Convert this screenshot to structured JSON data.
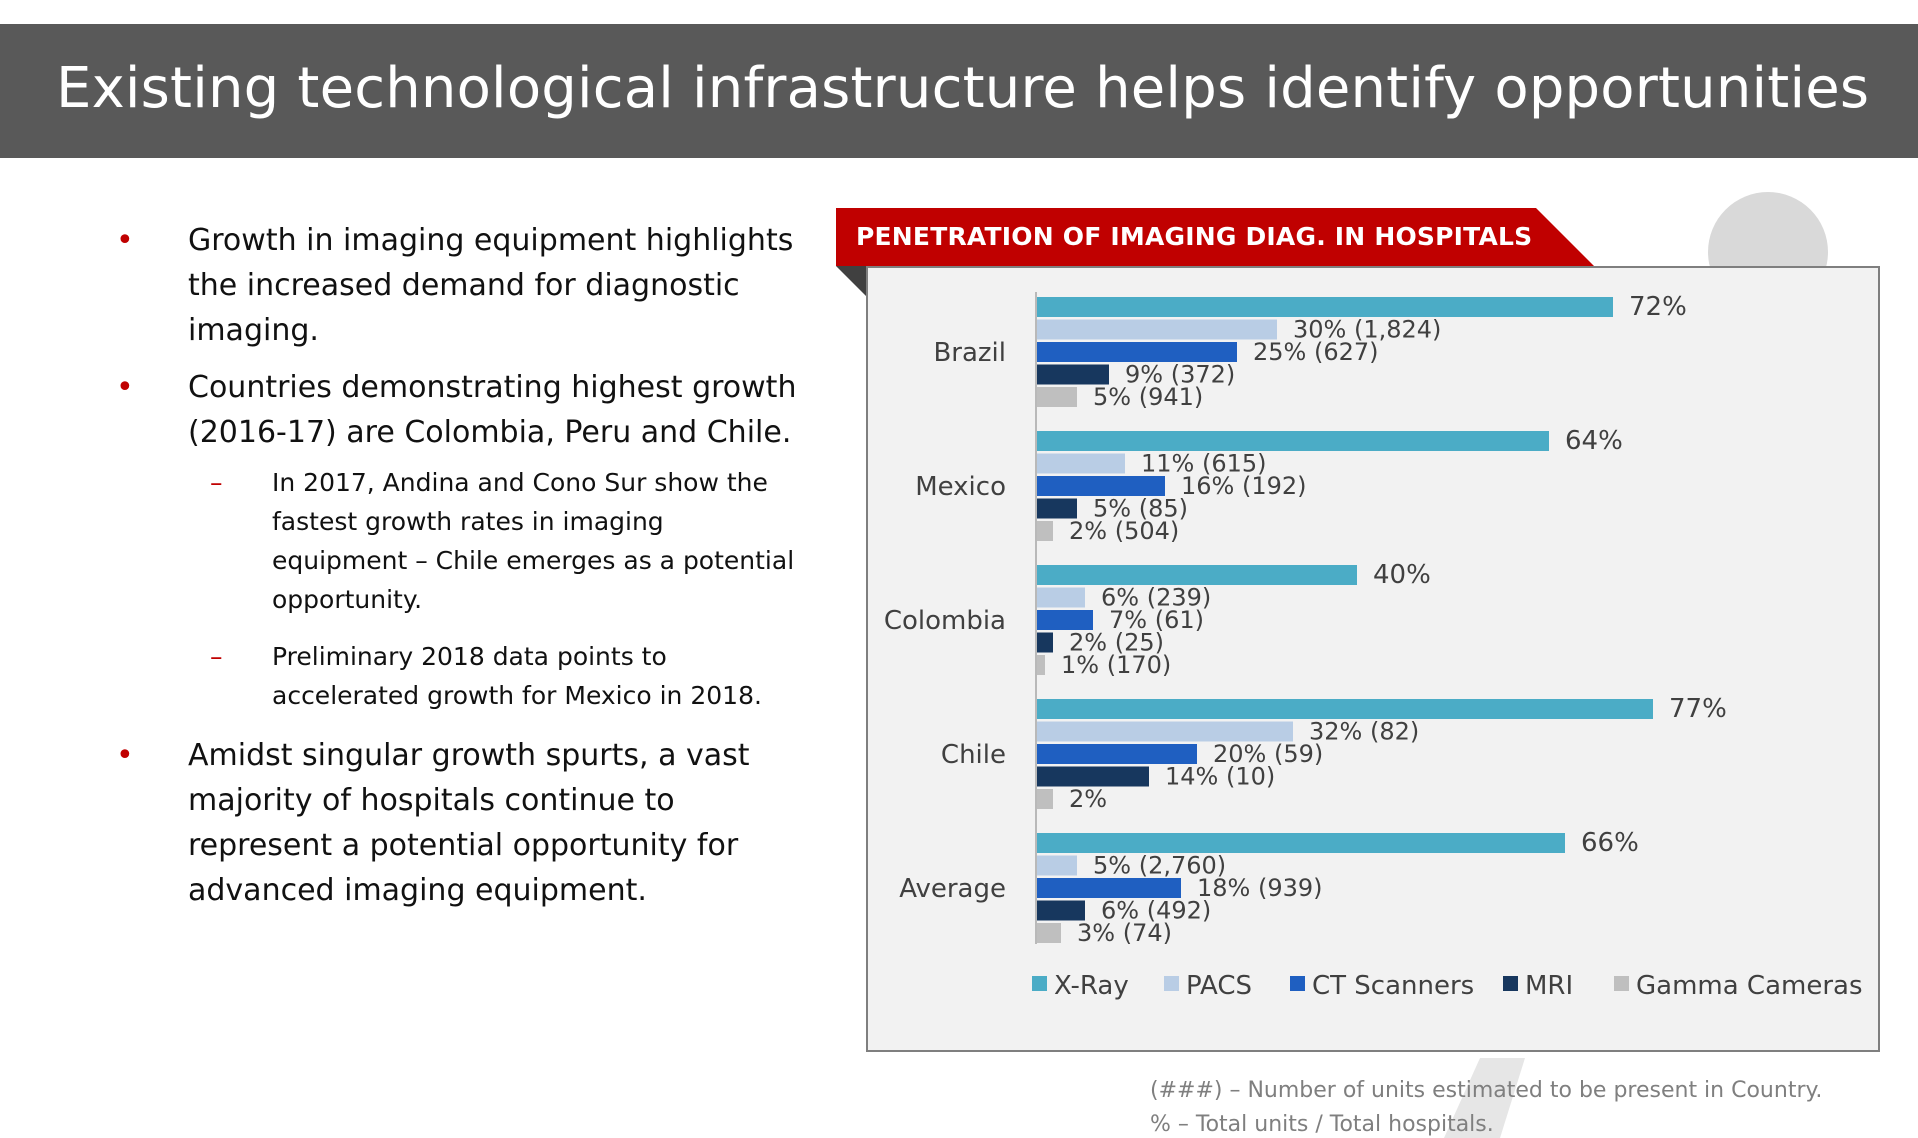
{
  "page": {
    "title": "Existing technological infrastructure helps identify opportunities"
  },
  "bullets": [
    {
      "text": "Growth in imaging equipment highlights the increased demand for diagnostic imaging."
    },
    {
      "text": "Countries demonstrating highest growth (2016-17) are Colombia, Peru and Chile.",
      "sub": [
        {
          "text": "In 2017, Andina and Cono Sur show the fastest growth rates in imaging equipment – Chile emerges as a potential opportunity."
        },
        {
          "text": "Preliminary 2018 data points to accelerated growth for Mexico in 2018."
        }
      ]
    },
    {
      "text": "Amidst singular growth spurts, a vast majority of hospitals continue to represent a potential opportunity for advanced imaging equipment."
    }
  ],
  "bullet_marker": "•",
  "sub_marker": "–",
  "notes": {
    "line1": "(###) – Number of units estimated to be present in Country.",
    "line2": "% – Total units / Total hospitals."
  },
  "colors": {
    "accent": "#c00000",
    "title_bar": "#595959",
    "chart_bg": "#f2f2f2"
  },
  "chart_data": {
    "type": "bar",
    "orientation": "horizontal",
    "title": "PENETRATION OF IMAGING DIAG. IN HOSPITALS",
    "categories": [
      "Brazil",
      "Mexico",
      "Colombia",
      "Chile",
      "Average"
    ],
    "xlim": [
      0,
      100
    ],
    "grid": false,
    "legend_position": "bottom",
    "series": [
      {
        "name": "X-Ray",
        "color": "#4bacc6",
        "values": [
          72,
          64,
          40,
          77,
          66
        ],
        "labels": [
          "72%",
          "64%",
          "40%",
          "77%",
          "66%"
        ]
      },
      {
        "name": "PACS",
        "color": "#b9cde5",
        "values": [
          30,
          11,
          6,
          32,
          5
        ],
        "labels": [
          "30% (1,824)",
          "11% (615)",
          "6% (239)",
          "32% (82)",
          "5% (2,760)"
        ]
      },
      {
        "name": "CT Scanners",
        "color": "#1f5fc1",
        "values": [
          25,
          16,
          7,
          20,
          18
        ],
        "labels": [
          "25% (627)",
          "16% (192)",
          "7% (61)",
          "20% (59)",
          "18% (939)"
        ]
      },
      {
        "name": "MRI",
        "color": "#17375e",
        "values": [
          9,
          5,
          2,
          14,
          6
        ],
        "labels": [
          "9% (372)",
          "5% (85)",
          "2% (25)",
          "14% (10)",
          "6% (492)"
        ]
      },
      {
        "name": "Gamma Cameras",
        "color": "#bfbfbf",
        "values": [
          5,
          2,
          1,
          2,
          3
        ],
        "labels": [
          "5% (941)",
          "2% (504)",
          "1% (170)",
          "2%",
          "3% (74)"
        ]
      }
    ]
  }
}
